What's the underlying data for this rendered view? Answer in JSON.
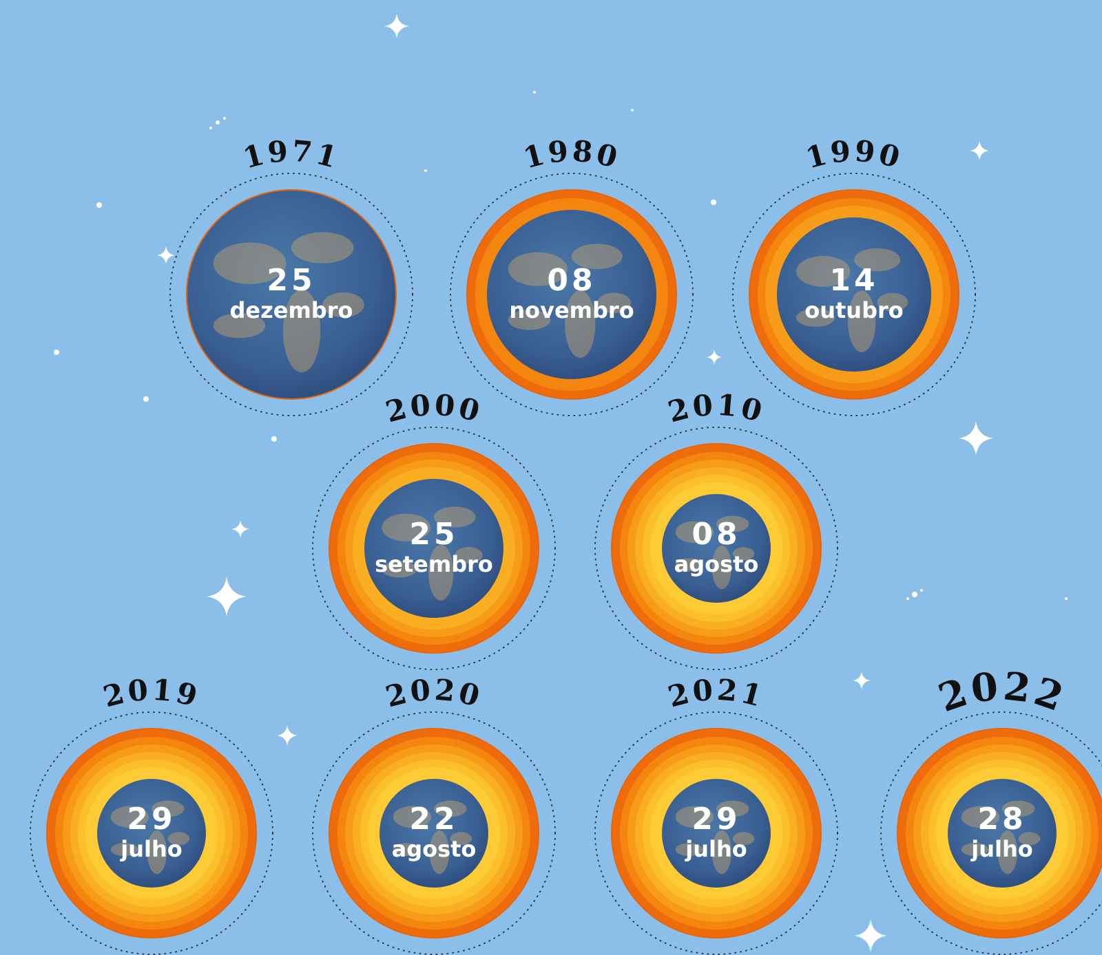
{
  "items": [
    {
      "year": "1971",
      "day": "25",
      "month": "dezembro"
    },
    {
      "year": "1980",
      "day": "08",
      "month": "novembro"
    },
    {
      "year": "1990",
      "day": "14",
      "month": "outubro"
    },
    {
      "year": "2000",
      "day": "25",
      "month": "setembro"
    },
    {
      "year": "2010",
      "day": "08",
      "month": "agosto"
    },
    {
      "year": "2019",
      "day": "29",
      "month": "julho"
    },
    {
      "year": "2020",
      "day": "22",
      "month": "agosto"
    },
    {
      "year": "2021",
      "day": "29",
      "month": "julho"
    },
    {
      "year": "2022",
      "day": "28",
      "month": "julho"
    }
  ]
}
